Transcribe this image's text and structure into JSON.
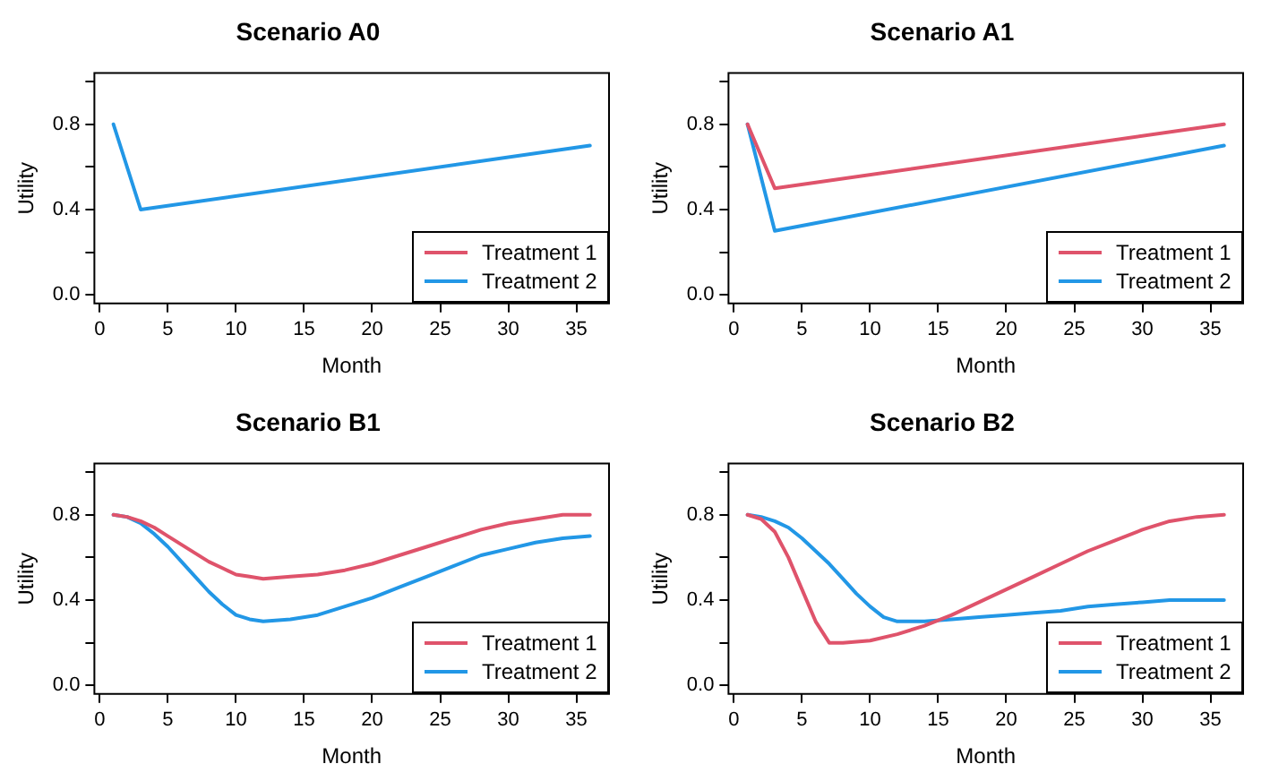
{
  "chart_data": [
    {
      "type": "line",
      "title": "Scenario A0",
      "xlabel": "Month",
      "ylabel": "Utility",
      "xlim": [
        -0.4,
        37.4
      ],
      "ylim": [
        -0.04,
        1.04
      ],
      "xticks": [
        0,
        5,
        10,
        15,
        20,
        25,
        30,
        35
      ],
      "yticks": [
        {
          "value": 0,
          "label": "0.0"
        },
        {
          "value": 0.2,
          "label": null
        },
        {
          "value": 0.4,
          "label": "0.4"
        },
        {
          "value": 0.6,
          "label": null
        },
        {
          "value": 0.8,
          "label": "0.8"
        },
        {
          "value": 1,
          "label": null
        }
      ],
      "grid": false,
      "legend": "bottom right",
      "marker": "none",
      "line_style": "solid",
      "series": [
        {
          "name": "Treatment 1",
          "color": "#df536b"
        },
        {
          "name": "Treatment 2",
          "color": "#2297e6",
          "x": [
            1,
            3,
            36
          ],
          "values": [
            0.8,
            0.4,
            0.7
          ]
        }
      ]
    },
    {
      "type": "line",
      "title": "Scenario A1",
      "xlabel": "Month",
      "ylabel": "Utility",
      "xlim": [
        -0.4,
        37.4
      ],
      "ylim": [
        -0.04,
        1.04
      ],
      "xticks": [
        0,
        5,
        10,
        15,
        20,
        25,
        30,
        35
      ],
      "yticks": [
        {
          "value": 0,
          "label": "0.0"
        },
        {
          "value": 0.2,
          "label": null
        },
        {
          "value": 0.4,
          "label": "0.4"
        },
        {
          "value": 0.6,
          "label": null
        },
        {
          "value": 0.8,
          "label": "0.8"
        },
        {
          "value": 1,
          "label": null
        }
      ],
      "grid": false,
      "legend": "bottom right",
      "marker": "none",
      "line_style": "solid",
      "series": [
        {
          "name": "Treatment 1",
          "color": "#df536b",
          "x": [
            1,
            3,
            36
          ],
          "values": [
            0.8,
            0.5,
            0.8
          ]
        },
        {
          "name": "Treatment 2",
          "color": "#2297e6",
          "x": [
            1,
            3,
            36
          ],
          "values": [
            0.8,
            0.3,
            0.7
          ]
        }
      ]
    },
    {
      "type": "line",
      "title": "Scenario B1",
      "xlabel": "Month",
      "ylabel": "Utility",
      "xlim": [
        -0.4,
        37.4
      ],
      "ylim": [
        -0.04,
        1.04
      ],
      "xticks": [
        0,
        5,
        10,
        15,
        20,
        25,
        30,
        35
      ],
      "yticks": [
        {
          "value": 0,
          "label": "0.0"
        },
        {
          "value": 0.2,
          "label": null
        },
        {
          "value": 0.4,
          "label": "0.4"
        },
        {
          "value": 0.6,
          "label": null
        },
        {
          "value": 0.8,
          "label": "0.8"
        },
        {
          "value": 1,
          "label": null
        }
      ],
      "grid": false,
      "legend": "bottom right",
      "marker": "none",
      "line_style": "solid",
      "series": [
        {
          "name": "Treatment 1",
          "color": "#df536b",
          "x": [
            1,
            2,
            3,
            4,
            5,
            6,
            7,
            8,
            9,
            10,
            11,
            12,
            14,
            16,
            18,
            20,
            22,
            24,
            26,
            28,
            30,
            32,
            34,
            36
          ],
          "values": [
            0.8,
            0.79,
            0.77,
            0.74,
            0.7,
            0.66,
            0.62,
            0.58,
            0.55,
            0.52,
            0.51,
            0.5,
            0.51,
            0.52,
            0.54,
            0.57,
            0.61,
            0.65,
            0.69,
            0.73,
            0.76,
            0.78,
            0.8,
            0.8
          ]
        },
        {
          "name": "Treatment 2",
          "color": "#2297e6",
          "x": [
            1,
            2,
            3,
            4,
            5,
            6,
            7,
            8,
            9,
            10,
            11,
            12,
            14,
            16,
            18,
            20,
            22,
            24,
            26,
            28,
            30,
            32,
            34,
            36
          ],
          "values": [
            0.8,
            0.79,
            0.76,
            0.71,
            0.65,
            0.58,
            0.51,
            0.44,
            0.38,
            0.33,
            0.31,
            0.3,
            0.31,
            0.33,
            0.37,
            0.41,
            0.46,
            0.51,
            0.56,
            0.61,
            0.64,
            0.67,
            0.69,
            0.7
          ]
        }
      ]
    },
    {
      "type": "line",
      "title": "Scenario B2",
      "xlabel": "Month",
      "ylabel": "Utility",
      "xlim": [
        -0.4,
        37.4
      ],
      "ylim": [
        -0.04,
        1.04
      ],
      "xticks": [
        0,
        5,
        10,
        15,
        20,
        25,
        30,
        35
      ],
      "yticks": [
        {
          "value": 0,
          "label": "0.0"
        },
        {
          "value": 0.2,
          "label": null
        },
        {
          "value": 0.4,
          "label": "0.4"
        },
        {
          "value": 0.6,
          "label": null
        },
        {
          "value": 0.8,
          "label": "0.8"
        },
        {
          "value": 1,
          "label": null
        }
      ],
      "grid": false,
      "legend": "bottom right",
      "marker": "none",
      "line_style": "solid",
      "series": [
        {
          "name": "Treatment 1",
          "color": "#df536b",
          "x": [
            1,
            2,
            3,
            4,
            5,
            6,
            7,
            8,
            10,
            12,
            14,
            16,
            18,
            20,
            22,
            24,
            26,
            28,
            30,
            32,
            34,
            36
          ],
          "values": [
            0.8,
            0.78,
            0.72,
            0.6,
            0.45,
            0.3,
            0.2,
            0.2,
            0.21,
            0.24,
            0.28,
            0.33,
            0.39,
            0.45,
            0.51,
            0.57,
            0.63,
            0.68,
            0.73,
            0.77,
            0.79,
            0.8
          ]
        },
        {
          "name": "Treatment 2",
          "color": "#2297e6",
          "x": [
            1,
            2,
            3,
            4,
            5,
            6,
            7,
            8,
            9,
            10,
            11,
            12,
            14,
            16,
            18,
            20,
            22,
            24,
            26,
            28,
            30,
            32,
            34,
            36
          ],
          "values": [
            0.8,
            0.79,
            0.77,
            0.74,
            0.69,
            0.63,
            0.57,
            0.5,
            0.43,
            0.37,
            0.32,
            0.3,
            0.3,
            0.31,
            0.32,
            0.33,
            0.34,
            0.35,
            0.37,
            0.38,
            0.39,
            0.4,
            0.4,
            0.4
          ]
        }
      ]
    }
  ]
}
